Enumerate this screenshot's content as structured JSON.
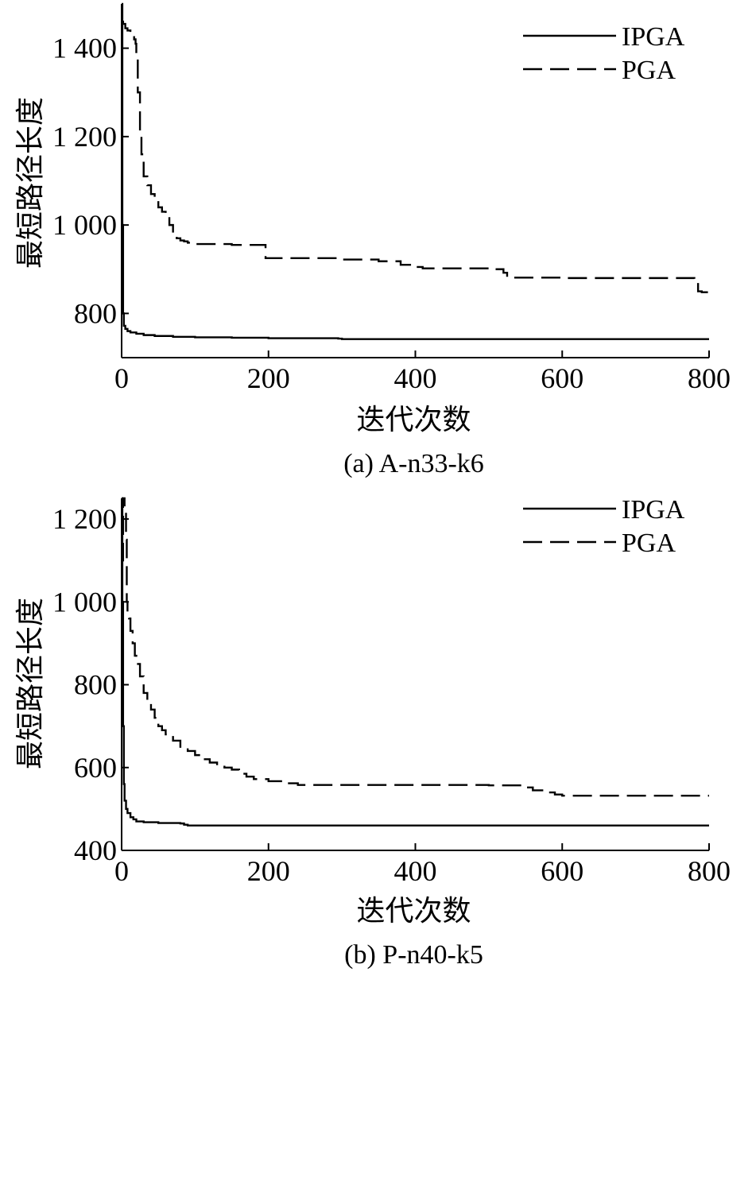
{
  "chart_data": [
    {
      "type": "line",
      "caption": "(a) A-n33-k6",
      "xlabel": "迭代次数",
      "ylabel": "最短路径长度",
      "xlim": [
        0,
        800
      ],
      "ylim": [
        700,
        1500
      ],
      "xticks": [
        0,
        200,
        400,
        600,
        800
      ],
      "xtick_labels": [
        "0",
        "200",
        "400",
        "600",
        "800"
      ],
      "yticks": [
        800,
        1000,
        1200,
        1400
      ],
      "ytick_labels": [
        "800",
        "1 000",
        "1 200",
        "1 400"
      ],
      "legend_position": "top-right",
      "series": [
        {
          "name": "IPGA",
          "style": "solid",
          "x": [
            0,
            1,
            2,
            3,
            5,
            8,
            12,
            20,
            30,
            45,
            70,
            100,
            150,
            200,
            250,
            295,
            300,
            400,
            500,
            600,
            700,
            800
          ],
          "y": [
            1500,
            1000,
            800,
            772,
            765,
            760,
            757,
            754,
            751,
            749,
            747,
            746,
            745,
            744,
            744,
            743,
            742,
            742,
            742,
            742,
            742,
            742
          ]
        },
        {
          "name": "PGA",
          "style": "dashed",
          "x": [
            0,
            2,
            5,
            8,
            12,
            15,
            17,
            19,
            20,
            22,
            25,
            27,
            30,
            35,
            40,
            45,
            50,
            55,
            60,
            65,
            70,
            75,
            80,
            85,
            90,
            100,
            150,
            194,
            196,
            250,
            300,
            350,
            380,
            400,
            410,
            450,
            500,
            520,
            525,
            530,
            600,
            700,
            775,
            780,
            785,
            790,
            800
          ],
          "y": [
            1460,
            1455,
            1445,
            1440,
            1435,
            1430,
            1420,
            1410,
            1380,
            1300,
            1200,
            1160,
            1110,
            1090,
            1070,
            1060,
            1040,
            1030,
            1020,
            1000,
            980,
            970,
            965,
            963,
            960,
            957,
            955,
            955,
            925,
            925,
            922,
            918,
            910,
            905,
            902,
            902,
            900,
            892,
            885,
            881,
            880,
            880,
            880,
            870,
            850,
            848,
            848
          ]
        }
      ]
    },
    {
      "type": "line",
      "caption": "(b) P-n40-k5",
      "xlabel": "迭代次数",
      "ylabel": "最短路径长度",
      "xlim": [
        0,
        800
      ],
      "ylim": [
        400,
        1250
      ],
      "xticks": [
        0,
        200,
        400,
        600,
        800
      ],
      "xtick_labels": [
        "0",
        "200",
        "400",
        "600",
        "800"
      ],
      "yticks": [
        400,
        600,
        800,
        1000,
        1200
      ],
      "ytick_labels": [
        "400",
        "600",
        "800",
        "1 000",
        "1 200"
      ],
      "legend_position": "top-right",
      "series": [
        {
          "name": "IPGA",
          "style": "solid",
          "x": [
            0,
            1,
            2,
            3,
            4,
            6,
            8,
            12,
            16,
            20,
            30,
            50,
            80,
            85,
            90,
            200,
            400,
            600,
            800
          ],
          "y": [
            1250,
            1000,
            700,
            560,
            520,
            500,
            490,
            480,
            475,
            470,
            468,
            466,
            465,
            462,
            460,
            460,
            460,
            460,
            460
          ]
        },
        {
          "name": "PGA",
          "style": "dashed",
          "x": [
            0,
            2,
            4,
            6,
            7,
            8,
            10,
            12,
            15,
            18,
            20,
            25,
            30,
            35,
            40,
            45,
            50,
            55,
            60,
            70,
            80,
            90,
            100,
            110,
            120,
            130,
            140,
            150,
            160,
            170,
            180,
            200,
            220,
            240,
            300,
            400,
            500,
            550,
            560,
            580,
            590,
            600,
            700,
            800
          ],
          "y": [
            1100,
            1250,
            1220,
            1150,
            1000,
            975,
            960,
            930,
            900,
            870,
            850,
            820,
            780,
            760,
            740,
            720,
            700,
            690,
            680,
            665,
            650,
            640,
            630,
            620,
            612,
            605,
            600,
            595,
            585,
            578,
            572,
            567,
            562,
            558,
            558,
            558,
            557,
            552,
            545,
            540,
            535,
            532,
            532,
            532
          ]
        }
      ]
    }
  ]
}
